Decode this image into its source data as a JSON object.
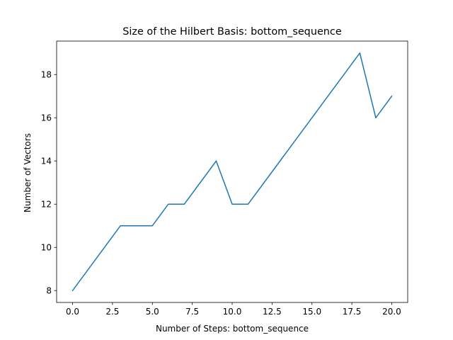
{
  "chart_data": {
    "type": "line",
    "title": "Size of the Hilbert Basis: bottom_sequence",
    "xlabel": "Number of Steps: bottom_sequence",
    "ylabel": "Number of Vectors",
    "xlim": [
      -1.0,
      21.0
    ],
    "ylim": [
      7.45,
      19.55
    ],
    "x_ticks": [
      0.0,
      2.5,
      5.0,
      7.5,
      10.0,
      12.5,
      15.0,
      17.5,
      20.0
    ],
    "x_tick_labels": [
      "0.0",
      "2.5",
      "5.0",
      "7.5",
      "10.0",
      "12.5",
      "15.0",
      "17.5",
      "20.0"
    ],
    "y_ticks": [
      8,
      10,
      12,
      14,
      16,
      18
    ],
    "y_tick_labels": [
      "8",
      "10",
      "12",
      "14",
      "16",
      "18"
    ],
    "grid": false,
    "series": [
      {
        "color": "#1f77b4",
        "x": [
          0,
          1,
          2,
          3,
          4,
          5,
          6,
          7,
          8,
          9,
          10,
          11,
          12,
          13,
          14,
          15,
          16,
          17,
          18,
          19,
          20
        ],
        "y": [
          8,
          9,
          10,
          11,
          11,
          11,
          12,
          12,
          13,
          14,
          12,
          12,
          13,
          14,
          15,
          16,
          17,
          18,
          19,
          16,
          17
        ]
      }
    ]
  }
}
